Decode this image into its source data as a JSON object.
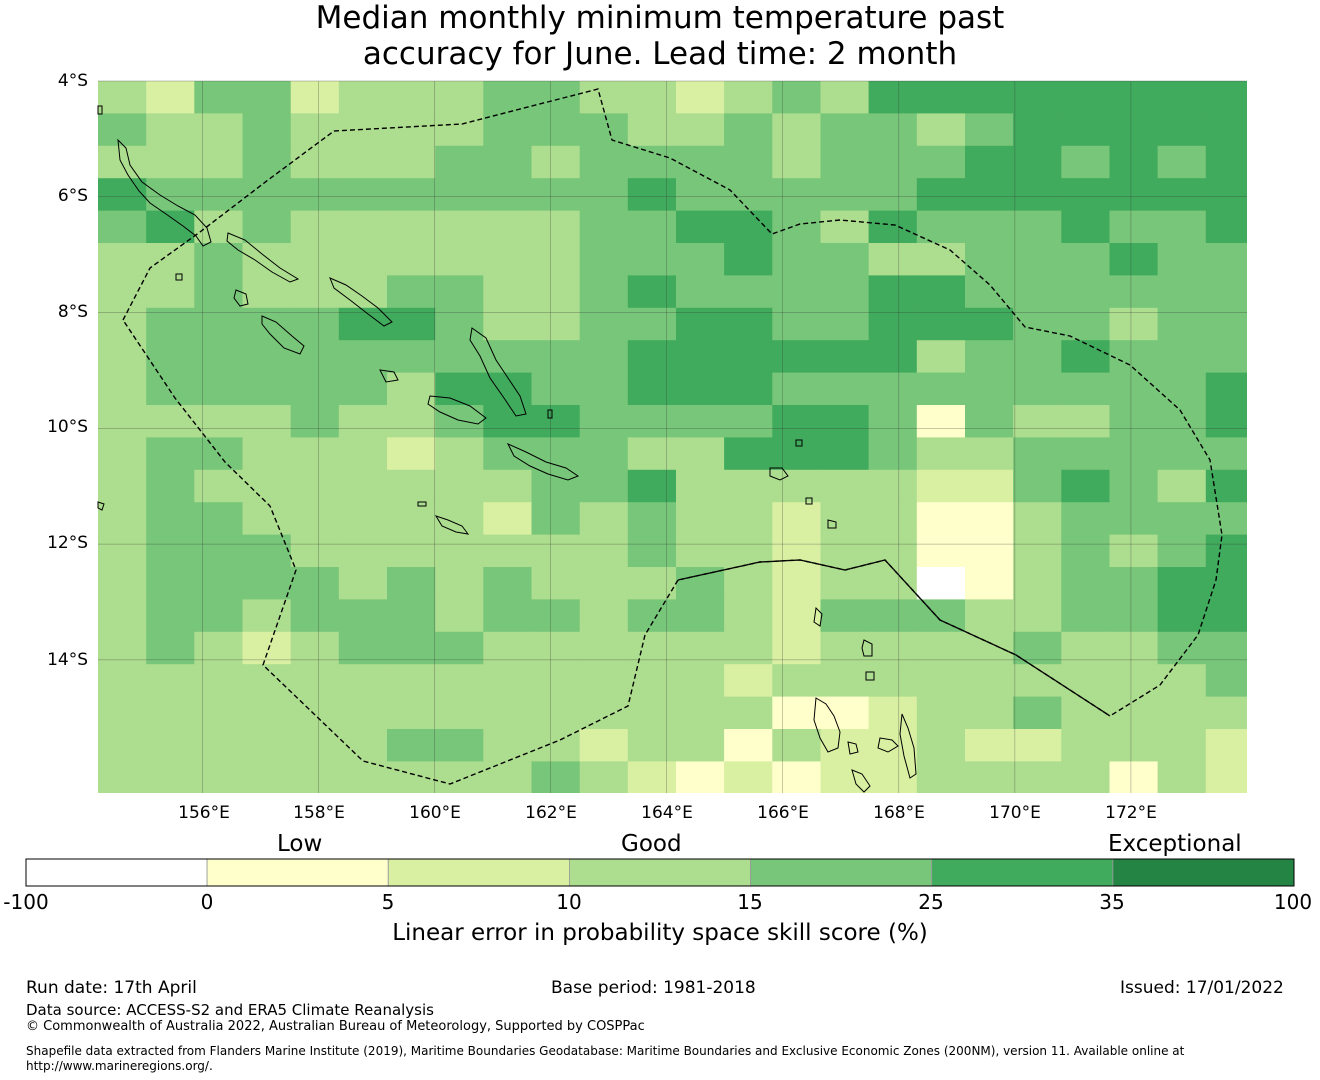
{
  "title": {
    "line1": "Median monthly minimum temperature past",
    "line2": "accuracy for June. Lead time: 2 month"
  },
  "map": {
    "lat_labels": [
      "4°S",
      "6°S",
      "8°S",
      "10°S",
      "12°S",
      "14°S"
    ],
    "lon_labels": [
      "156°E",
      "158°E",
      "160°E",
      "162°E",
      "164°E",
      "166°E",
      "168°E",
      "170°E",
      "172°E"
    ],
    "extent": {
      "lon_min": 154.2,
      "lon_max": 174.0,
      "lat_min": -16.3,
      "lat_max": -4.0
    },
    "grid_data": {
      "cell_size_deg": 0.83,
      "lon_start": 154.2,
      "lat_start": -4.0,
      "rows": [
        [
          3,
          2,
          4,
          4,
          2,
          3,
          3,
          3,
          4,
          4,
          3,
          3,
          2,
          3,
          4,
          3,
          5,
          5,
          5,
          5,
          5,
          5,
          5,
          5
        ],
        [
          4,
          3,
          3,
          4,
          3,
          3,
          3,
          3,
          4,
          4,
          4,
          3,
          3,
          4,
          3,
          4,
          4,
          3,
          4,
          5,
          5,
          5,
          5,
          5
        ],
        [
          3,
          3,
          3,
          4,
          3,
          3,
          3,
          4,
          4,
          3,
          4,
          4,
          4,
          4,
          3,
          4,
          4,
          4,
          5,
          5,
          4,
          5,
          4,
          5
        ],
        [
          5,
          4,
          4,
          4,
          4,
          4,
          4,
          4,
          4,
          4,
          4,
          5,
          4,
          4,
          4,
          4,
          4,
          5,
          5,
          5,
          5,
          5,
          5,
          5
        ],
        [
          4,
          5,
          3,
          4,
          3,
          3,
          3,
          3,
          3,
          3,
          4,
          4,
          5,
          5,
          4,
          3,
          5,
          4,
          4,
          4,
          5,
          4,
          4,
          5
        ],
        [
          3,
          3,
          4,
          3,
          3,
          3,
          3,
          3,
          3,
          3,
          4,
          4,
          4,
          5,
          4,
          4,
          3,
          3,
          4,
          4,
          4,
          5,
          4,
          4
        ],
        [
          3,
          3,
          4,
          3,
          3,
          3,
          4,
          4,
          3,
          3,
          4,
          5,
          4,
          4,
          4,
          4,
          5,
          5,
          4,
          4,
          4,
          4,
          4,
          4
        ],
        [
          3,
          4,
          4,
          4,
          4,
          5,
          5,
          4,
          3,
          3,
          4,
          4,
          5,
          5,
          4,
          4,
          5,
          5,
          5,
          4,
          4,
          3,
          4,
          4
        ],
        [
          3,
          4,
          4,
          4,
          4,
          4,
          4,
          4,
          4,
          4,
          4,
          5,
          5,
          5,
          5,
          5,
          5,
          3,
          4,
          4,
          5,
          4,
          4,
          4
        ],
        [
          3,
          4,
          4,
          4,
          4,
          4,
          3,
          5,
          5,
          4,
          4,
          5,
          5,
          5,
          4,
          4,
          4,
          4,
          4,
          4,
          4,
          4,
          4,
          5
        ],
        [
          3,
          3,
          3,
          3,
          4,
          3,
          3,
          4,
          5,
          5,
          4,
          4,
          4,
          4,
          5,
          5,
          4,
          1,
          4,
          3,
          3,
          4,
          4,
          5
        ],
        [
          3,
          4,
          4,
          3,
          3,
          3,
          2,
          3,
          4,
          4,
          4,
          3,
          3,
          5,
          5,
          5,
          4,
          3,
          3,
          4,
          4,
          4,
          4,
          4
        ],
        [
          3,
          4,
          3,
          3,
          3,
          3,
          3,
          3,
          3,
          4,
          4,
          5,
          3,
          3,
          3,
          3,
          3,
          2,
          2,
          4,
          5,
          4,
          3,
          5
        ],
        [
          3,
          4,
          4,
          3,
          3,
          3,
          3,
          3,
          2,
          4,
          3,
          4,
          3,
          3,
          2,
          3,
          3,
          1,
          1,
          3,
          4,
          4,
          4,
          4
        ],
        [
          3,
          4,
          4,
          4,
          3,
          3,
          3,
          3,
          3,
          3,
          3,
          4,
          3,
          3,
          2,
          3,
          3,
          1,
          1,
          3,
          4,
          3,
          4,
          5
        ],
        [
          3,
          4,
          4,
          4,
          4,
          3,
          4,
          3,
          4,
          3,
          3,
          3,
          4,
          3,
          2,
          3,
          3,
          0,
          1,
          3,
          4,
          4,
          5,
          5
        ],
        [
          3,
          4,
          4,
          3,
          4,
          4,
          4,
          3,
          4,
          4,
          3,
          4,
          4,
          3,
          2,
          4,
          4,
          4,
          3,
          3,
          4,
          4,
          5,
          5
        ],
        [
          3,
          4,
          3,
          2,
          3,
          4,
          4,
          4,
          3,
          3,
          3,
          3,
          3,
          3,
          2,
          3,
          3,
          3,
          3,
          4,
          3,
          3,
          4,
          4
        ],
        [
          3,
          3,
          3,
          3,
          3,
          3,
          3,
          3,
          3,
          3,
          3,
          3,
          3,
          2,
          3,
          3,
          3,
          3,
          3,
          3,
          3,
          3,
          3,
          4
        ],
        [
          3,
          3,
          3,
          3,
          3,
          3,
          3,
          3,
          3,
          3,
          3,
          3,
          3,
          3,
          1,
          1,
          2,
          3,
          3,
          4,
          3,
          3,
          3,
          3
        ],
        [
          3,
          3,
          3,
          3,
          3,
          3,
          4,
          4,
          3,
          3,
          2,
          3,
          3,
          1,
          3,
          2,
          2,
          3,
          2,
          2,
          3,
          3,
          3,
          2
        ],
        [
          3,
          3,
          3,
          3,
          3,
          3,
          3,
          3,
          3,
          4,
          3,
          2,
          1,
          2,
          1,
          2,
          2,
          3,
          3,
          3,
          3,
          1,
          3,
          2
        ],
        [
          3,
          2,
          3,
          3,
          3,
          3,
          3,
          3,
          3,
          3,
          3,
          2,
          1,
          1,
          2,
          2,
          2,
          3,
          3,
          3,
          3,
          3,
          3,
          2
        ]
      ]
    }
  },
  "colorbar": {
    "categories": [
      "Low",
      "Good",
      "Exceptional"
    ],
    "ticks": [
      "-100",
      "0",
      "5",
      "10",
      "15",
      "25",
      "35",
      "100"
    ],
    "colors": [
      "#ffffff",
      "#ffffcc",
      "#d9f0a3",
      "#addd8e",
      "#78c679",
      "#41ab5d",
      "#238443"
    ],
    "label": "Linear error in probability space skill score (%)"
  },
  "footer": {
    "run_date": "Run date: 17th April",
    "base_period": "Base period: 1981-2018",
    "issued": "Issued: 17/01/2022",
    "data_source": "Data source: ACCESS-S2 and ERA5 Climate Reanalysis",
    "copyright": "© Commonwealth of Australia 2022, Australian Bureau of Meteorology, Supported by COSPPac",
    "shapefile_line1": "Shapefile data extracted from Flanders Marine Institute (2019), Maritime Boundaries Geodatabase: Maritime Boundaries and Exclusive Economic Zones (200NM), version 11. Available online at",
    "shapefile_line2": "http://www.marineregions.org/."
  }
}
